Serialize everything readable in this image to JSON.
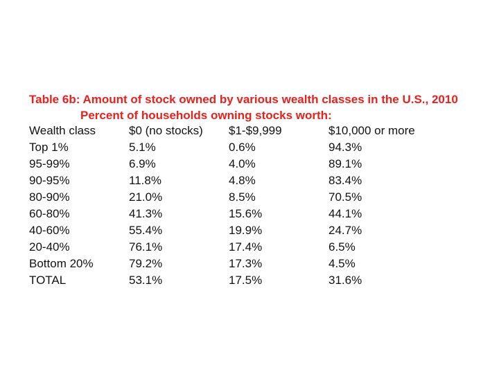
{
  "title": {
    "line1": "Table 6b: Amount of stock owned by various wealth classes in the U.S., 2010",
    "line2": "Percent of households owning stocks worth:"
  },
  "table": {
    "headers": [
      "Wealth class",
      "$0 (no stocks)",
      "$1-$9,999",
      "$10,000 or more"
    ],
    "rows": [
      [
        "Top 1%",
        "5.1%",
        "0.6%",
        "94.3%"
      ],
      [
        "95-99%",
        "6.9%",
        "4.0%",
        "89.1%"
      ],
      [
        "90-95%",
        "11.8%",
        "4.8%",
        "83.4%"
      ],
      [
        "80-90%",
        "21.0%",
        "8.5%",
        "70.5%"
      ],
      [
        "60-80%",
        "41.3%",
        "15.6%",
        "44.1%"
      ],
      [
        "40-60%",
        "55.4%",
        "19.9%",
        "24.7%"
      ],
      [
        "20-40%",
        "76.1%",
        "17.4%",
        "6.5%"
      ],
      [
        "Bottom 20%",
        "79.2%",
        "17.3%",
        "4.5%"
      ],
      [
        "TOTAL",
        "53.1%",
        "17.5%",
        "31.6%"
      ]
    ]
  },
  "colors": {
    "title": "#e8211d",
    "text": "#111111",
    "background": "#ffffff"
  }
}
